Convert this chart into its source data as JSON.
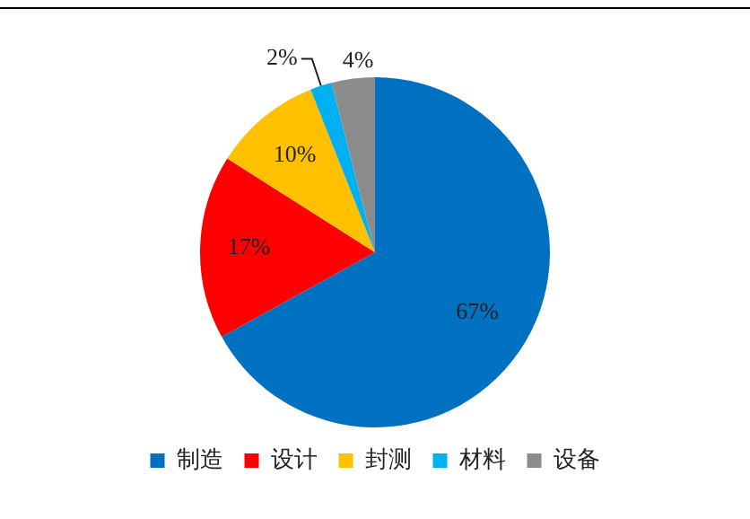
{
  "chart_data": {
    "type": "pie",
    "categories": [
      "制造",
      "设计",
      "封测",
      "材料",
      "设备"
    ],
    "values": [
      67,
      17,
      10,
      2,
      4
    ],
    "value_labels": [
      "67%",
      "17%",
      "10%",
      "2%",
      "4%"
    ],
    "colors": [
      "#0070c0",
      "#ff0000",
      "#ffc000",
      "#00b0f0",
      "#8c8c8c"
    ],
    "legend": "bottom"
  }
}
